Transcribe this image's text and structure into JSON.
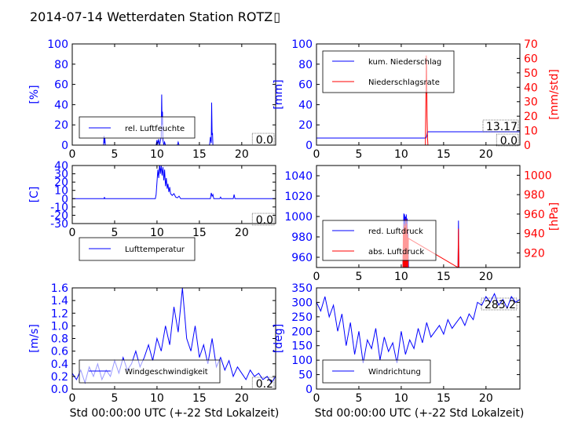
{
  "title": "2014-07-14 Wetterdaten Station ROTZ",
  "title_glyph": "▯",
  "xlabel": "Std 00:00:00 UTC (+-22 Std Lokalzeit)",
  "colors": {
    "blue": "#0000ff",
    "red": "#ff0000",
    "light": "#8080ff",
    "axis": "#000000"
  },
  "chart_data": [
    {
      "type": "line",
      "id": "humidity",
      "ylabel": "[%]",
      "xlim": [
        0,
        24
      ],
      "ylim": [
        0,
        100
      ],
      "xticks": [
        0,
        5,
        10,
        15,
        20
      ],
      "yticks": [
        0,
        20,
        40,
        60,
        80,
        100
      ],
      "legend": [
        "rel. Luftfeuchte"
      ],
      "legend_placement": "lower-left",
      "value_label": "0.0",
      "series": [
        {
          "name": "rel. Luftfeuchte",
          "color": "blue",
          "x": [
            0,
            3.7,
            3.75,
            3.8,
            3.85,
            3.9,
            9.9,
            10.0,
            10.1,
            10.2,
            10.3,
            10.4,
            10.5,
            10.55,
            10.6,
            10.65,
            10.7,
            10.8,
            10.9,
            11.0,
            11.1,
            12.4,
            12.5,
            12.6,
            16.2,
            16.3,
            16.4,
            16.45,
            16.5,
            16.55,
            16.6,
            16.7,
            24
          ],
          "y": [
            0,
            0,
            9,
            2,
            7,
            0,
            0,
            5,
            1,
            6,
            0,
            4,
            8,
            50,
            20,
            33,
            5,
            0,
            3,
            0,
            0,
            0,
            3,
            0,
            0,
            8,
            2,
            42,
            10,
            12,
            0,
            0,
            0
          ]
        }
      ]
    },
    {
      "type": "line",
      "id": "precipitation",
      "ylabel": "[mm]",
      "y2label": "[mm/std]",
      "xlim": [
        0,
        24
      ],
      "ylim": [
        0,
        100
      ],
      "y2lim": [
        0,
        70
      ],
      "xticks": [
        0,
        5,
        10,
        15,
        20
      ],
      "yticks": [
        0,
        20,
        40,
        60,
        80,
        100
      ],
      "y2ticks": [
        0,
        10,
        20,
        30,
        40,
        50,
        60,
        70
      ],
      "legend": [
        "kum. Niederschlag",
        "Niederschlagsrate"
      ],
      "legend_placement": "top-left",
      "value_labels": [
        "13.17",
        "0.0"
      ],
      "series": [
        {
          "name": "kum. Niederschlag",
          "color": "blue",
          "axis": "left",
          "x": [
            0,
            12.9,
            13.0,
            13.1,
            24
          ],
          "y": [
            7,
            7,
            8.5,
            13.17,
            13.17
          ]
        },
        {
          "name": "Niederschlagsrate",
          "color": "red",
          "axis": "right",
          "x": [
            0,
            12.85,
            12.95,
            13.0,
            13.05,
            13.1,
            13.15,
            24
          ],
          "y": [
            0,
            0,
            62,
            55,
            20,
            5,
            0,
            0
          ]
        }
      ]
    },
    {
      "type": "line",
      "id": "temperature",
      "ylabel": "[C]",
      "xlim": [
        0,
        24
      ],
      "ylim": [
        -30,
        40
      ],
      "xticks": [
        0,
        5,
        10,
        15,
        20
      ],
      "yticks": [
        -30,
        -20,
        -10,
        0,
        10,
        20,
        30,
        40
      ],
      "legend": [
        "Lufttemperatur"
      ],
      "legend_placement": "lower-left",
      "value_label": "0.0",
      "series": [
        {
          "name": "Lufttemperatur",
          "color": "blue",
          "x": [
            0,
            3.75,
            3.8,
            3.85,
            9.8,
            9.9,
            10.0,
            10.1,
            10.2,
            10.3,
            10.4,
            10.5,
            10.6,
            10.7,
            10.8,
            10.9,
            11.0,
            11.1,
            11.2,
            11.3,
            11.4,
            11.5,
            11.6,
            11.8,
            12.0,
            12.2,
            12.4,
            12.6,
            12.8,
            16.3,
            16.4,
            16.5,
            16.6,
            16.7,
            17.4,
            17.5,
            17.6,
            19.0,
            19.1,
            19.2,
            20.0,
            24
          ],
          "y": [
            0,
            0,
            2,
            0,
            0,
            5,
            20,
            35,
            25,
            42,
            30,
            40,
            28,
            38,
            22,
            35,
            15,
            25,
            12,
            18,
            8,
            14,
            6,
            4,
            6,
            2,
            1,
            3,
            0,
            0,
            7,
            3,
            5,
            0,
            0,
            2,
            0,
            0,
            5,
            0,
            0,
            0
          ]
        }
      ]
    },
    {
      "type": "line",
      "id": "pressure",
      "ylabel": "",
      "y2label": "[hPa]",
      "xlim": [
        0,
        24
      ],
      "ylim": [
        950,
        1050
      ],
      "y2lim": [
        905,
        1010
      ],
      "xticks": [
        0,
        5,
        10,
        15,
        20
      ],
      "yticks": [
        960,
        980,
        1000,
        1020,
        1040
      ],
      "y2ticks": [
        920,
        940,
        960,
        980,
        1000
      ],
      "legend": [
        "red. Luftdruck",
        "abs. Luftdruck"
      ],
      "legend_placement": "lower-left",
      "series": [
        {
          "name": "red. Luftdruck",
          "color": "blue",
          "axis": "left",
          "x": [
            10.2,
            10.3,
            10.35,
            10.4,
            10.45,
            10.5,
            10.55,
            10.6,
            10.65,
            10.7,
            10.75,
            10.8,
            10.85,
            16.7,
            16.75,
            16.8
          ],
          "y": [
            950,
            1003,
            950,
            1002,
            950,
            1000,
            950,
            1002,
            950,
            998,
            950,
            985,
            950,
            950,
            996,
            950
          ]
        },
        {
          "name": "abs. Luftdruck",
          "color": "red",
          "axis": "right",
          "x": [
            10.2,
            10.25,
            10.3,
            10.35,
            10.4,
            10.45,
            10.5,
            10.55,
            10.6,
            10.65,
            10.7,
            10.75,
            10.8,
            10.85,
            16.7,
            16.75,
            16.8
          ],
          "y": [
            905,
            945,
            905,
            950,
            905,
            948,
            905,
            955,
            905,
            950,
            905,
            945,
            905,
            935,
            905,
            945,
            905
          ]
        }
      ]
    },
    {
      "type": "line",
      "id": "wind-speed",
      "ylabel": "[m/s]",
      "xlim": [
        0,
        24
      ],
      "ylim": [
        0,
        1.6
      ],
      "xticks": [
        0,
        5,
        10,
        15,
        20
      ],
      "yticks": [
        0.0,
        0.2,
        0.4,
        0.6,
        0.8,
        1.0,
        1.2,
        1.4,
        1.6
      ],
      "legend": [
        "Windgeschwindigkeit"
      ],
      "legend_placement": "lower-left",
      "value_label": "0.2",
      "series": [
        {
          "name": "Windgeschwindigkeit",
          "color": "blue",
          "x": [
            0,
            0.5,
            1,
            1.5,
            2,
            2.5,
            3,
            3.5,
            4,
            4.5,
            5,
            5.5,
            6,
            6.5,
            7,
            7.5,
            8,
            8.5,
            9,
            9.5,
            10,
            10.5,
            11,
            11.5,
            12,
            12.5,
            13,
            13.5,
            14,
            14.5,
            15,
            15.5,
            16,
            16.5,
            17,
            17.5,
            18,
            18.5,
            19,
            19.5,
            20,
            20.5,
            21,
            21.5,
            22,
            22.5,
            23,
            23.5,
            24
          ],
          "y": [
            0.25,
            0.15,
            0.3,
            0.1,
            0.35,
            0.2,
            0.4,
            0.15,
            0.3,
            0.2,
            0.45,
            0.25,
            0.5,
            0.3,
            0.4,
            0.6,
            0.35,
            0.5,
            0.7,
            0.45,
            0.8,
            0.6,
            1.0,
            0.7,
            1.3,
            0.9,
            1.6,
            0.8,
            0.6,
            1.0,
            0.5,
            0.7,
            0.4,
            0.8,
            0.35,
            0.5,
            0.3,
            0.45,
            0.2,
            0.35,
            0.25,
            0.15,
            0.3,
            0.2,
            0.25,
            0.15,
            0.2,
            0.1,
            0.2
          ]
        }
      ]
    },
    {
      "type": "line",
      "id": "wind-direction",
      "ylabel": "[deg]",
      "xlim": [
        0,
        24
      ],
      "ylim": [
        0,
        350
      ],
      "xticks": [
        0,
        5,
        10,
        15,
        20
      ],
      "yticks": [
        0,
        50,
        100,
        150,
        200,
        250,
        300,
        350
      ],
      "legend": [
        "Windrichtung"
      ],
      "legend_placement": "lower-left",
      "value_label": "283.2",
      "series": [
        {
          "name": "Windrichtung",
          "color": "blue",
          "x": [
            0,
            0.5,
            1,
            1.5,
            2,
            2.5,
            3,
            3.5,
            4,
            4.5,
            5,
            5.5,
            6,
            6.5,
            7,
            7.5,
            8,
            8.5,
            9,
            9.5,
            10,
            10.5,
            11,
            11.5,
            12,
            12.5,
            13,
            13.5,
            14,
            14.5,
            15,
            15.5,
            16,
            16.5,
            17,
            17.5,
            18,
            18.5,
            19,
            19.5,
            20,
            20.5,
            21,
            21.5,
            22,
            22.5,
            23,
            23.5,
            24
          ],
          "y": [
            300,
            270,
            320,
            250,
            290,
            200,
            260,
            150,
            230,
            120,
            200,
            90,
            170,
            140,
            210,
            100,
            180,
            130,
            160,
            90,
            200,
            120,
            170,
            140,
            210,
            160,
            230,
            180,
            200,
            220,
            190,
            240,
            210,
            230,
            250,
            220,
            260,
            240,
            300,
            290,
            320,
            300,
            330,
            290,
            310,
            280,
            320,
            300,
            310
          ]
        }
      ]
    }
  ]
}
